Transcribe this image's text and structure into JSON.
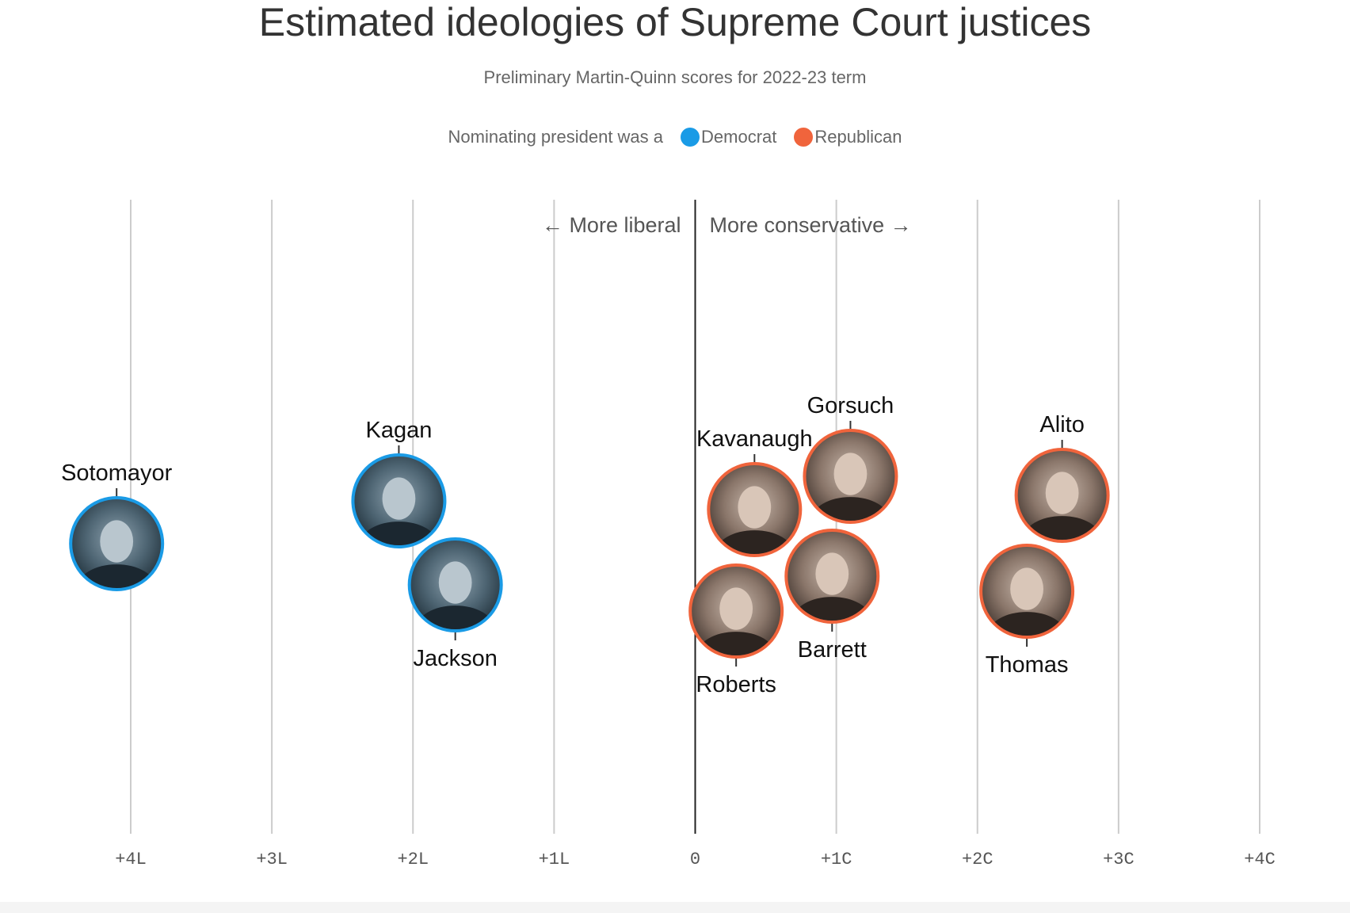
{
  "title": "Estimated ideologies of Supreme Court justices",
  "subtitle": "Preliminary Martin-Quinn scores for 2022-23 term",
  "legend": {
    "prefix": "Nominating president was a",
    "democrat_label": "Democrat",
    "republican_label": "Republican"
  },
  "direction_labels": {
    "liberal": "← More liberal",
    "conservative": "More conservative →"
  },
  "colors": {
    "democrat": "#1a9be6",
    "republican": "#f0643c",
    "gridline": "#cccccc",
    "zero_line": "#222222"
  },
  "chart_data": {
    "type": "scatter",
    "title": "Estimated ideologies of Supreme Court justices",
    "subtitle": "Preliminary Martin-Quinn scores for 2022-23 term",
    "xlim": [
      -4,
      4
    ],
    "x_ticks": [
      {
        "value": -4,
        "label": "+4L"
      },
      {
        "value": -3,
        "label": "+3L"
      },
      {
        "value": -2,
        "label": "+2L"
      },
      {
        "value": -1,
        "label": "+1L"
      },
      {
        "value": 0,
        "label": "0"
      },
      {
        "value": 1,
        "label": "+1C"
      },
      {
        "value": 2,
        "label": "+2C"
      },
      {
        "value": 3,
        "label": "+3C"
      },
      {
        "value": 4,
        "label": "+4C"
      }
    ],
    "grid": true,
    "legend_placement": "top-center",
    "points": [
      {
        "name": "Sotomayor",
        "x": -4.1,
        "party": "democrat",
        "label_side": "top"
      },
      {
        "name": "Kagan",
        "x": -2.1,
        "party": "democrat",
        "label_side": "top"
      },
      {
        "name": "Jackson",
        "x": -1.7,
        "party": "democrat",
        "label_side": "bottom"
      },
      {
        "name": "Kavanaugh",
        "x": 0.42,
        "party": "republican",
        "label_side": "top"
      },
      {
        "name": "Roberts",
        "x": 0.29,
        "party": "republican",
        "label_side": "bottom"
      },
      {
        "name": "Gorsuch",
        "x": 1.1,
        "party": "republican",
        "label_side": "top"
      },
      {
        "name": "Barrett",
        "x": 0.97,
        "party": "republican",
        "label_side": "bottom"
      },
      {
        "name": "Alito",
        "x": 2.6,
        "party": "republican",
        "label_side": "top"
      },
      {
        "name": "Thomas",
        "x": 2.35,
        "party": "republican",
        "label_side": "bottom"
      }
    ]
  }
}
